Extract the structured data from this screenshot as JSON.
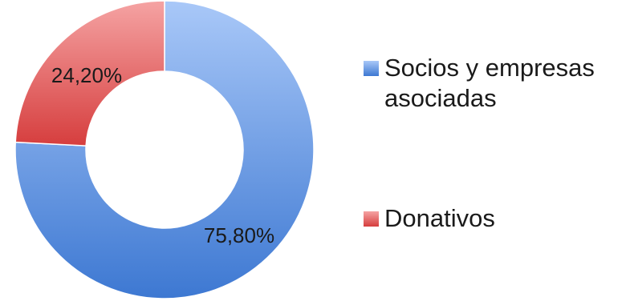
{
  "chart_data": {
    "type": "pie",
    "variant": "donut",
    "title": "",
    "categories": [
      "Socios y empresas asociadas",
      "Donativos"
    ],
    "values": [
      75.8,
      24.2
    ],
    "data_labels": [
      "75,80%",
      "24,20%"
    ],
    "colors": [
      {
        "light": "#a9c8f8",
        "dark": "#3d78d2"
      },
      {
        "light": "#f5a3a3",
        "dark": "#d63e3e"
      }
    ],
    "start_angle_deg": 0,
    "direction": "clockwise",
    "legend_position": "right"
  }
}
